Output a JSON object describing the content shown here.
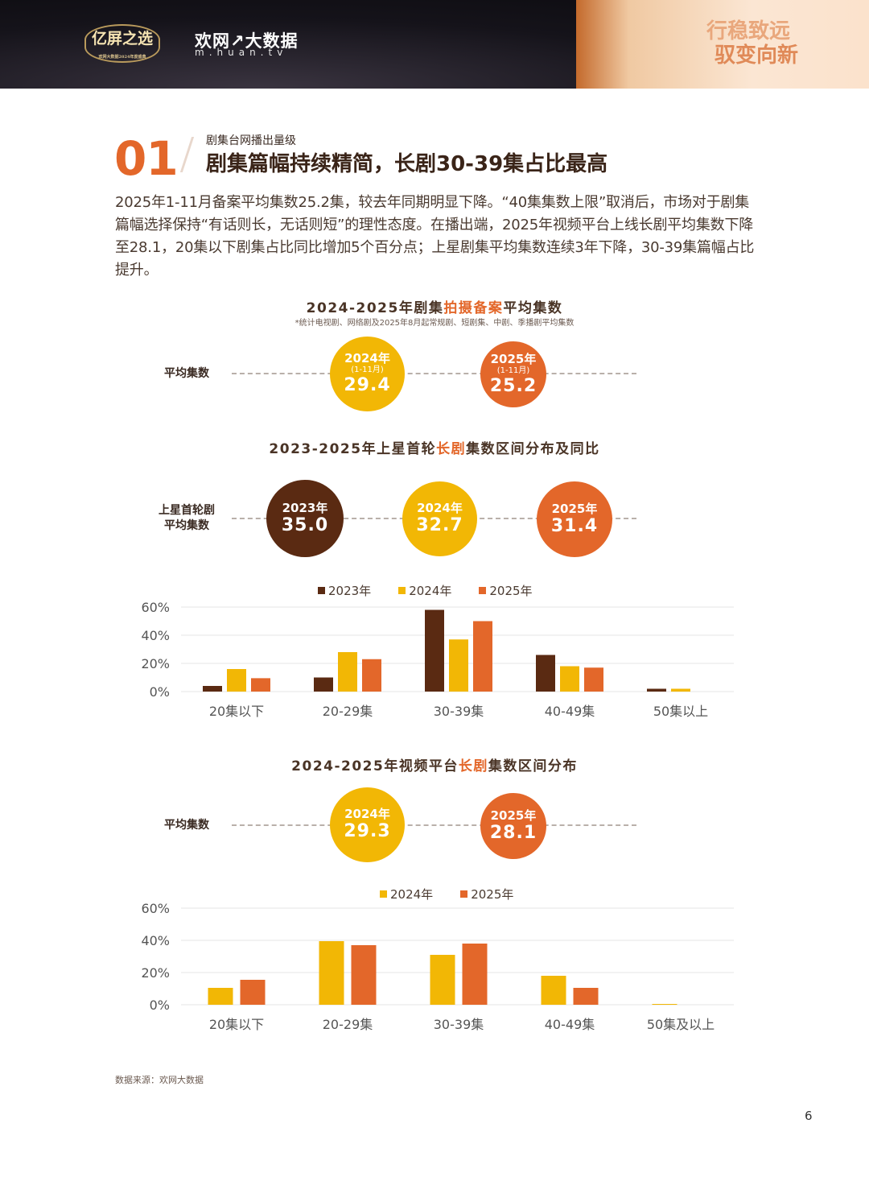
{
  "header": {
    "logo_text": "亿屏之选",
    "logo_subtext": "欢网大数据2024年度盛典",
    "brand": "欢网↗大数据",
    "brand_url": "m.huan.tv",
    "slogan_line1": "行稳致远",
    "slogan_line2": "驭变向新"
  },
  "section": {
    "number": "01",
    "kicker": "剧集台网播出量级",
    "title": "剧集篇幅持续精简，长剧30-39集占比最高",
    "paragraph": "2025年1-11月备案平均集数25.2集，较去年同期明显下降。“40集集数上限”取消后，市场对于剧集篇幅选择保持“有话则长，无话则短”的理性态度。在播出端，2025年视频平台上线长剧平均集数下降至28.1，20集以下剧集占比同比增加5个百分点；上星剧集平均集数连续3年下降，30-39集篇幅占比提升。"
  },
  "chart1": {
    "title_a": "2024-2025年剧集",
    "title_hl": "拍摄备案",
    "title_b": "平均集数",
    "note": "*统计电视剧、网络剧及2025年8月起常规剧、短剧集、中剧、季播剧平均集数",
    "row_label": "平均集数",
    "items": [
      {
        "year": "2024年",
        "sub": "(1-11月)",
        "value": "29.4"
      },
      {
        "year": "2025年",
        "sub": "(1-11月)",
        "value": "25.2"
      }
    ]
  },
  "chart2": {
    "title_a": "2023-2025年上星首轮",
    "title_hl": "长剧",
    "title_b": "集数区间分布及同比",
    "row_label_line1": "上星首轮剧",
    "row_label_line2": "平均集数",
    "items": [
      {
        "year": "2023年",
        "value": "35.0"
      },
      {
        "year": "2024年",
        "value": "32.7"
      },
      {
        "year": "2025年",
        "value": "31.4"
      }
    ]
  },
  "chart3": {
    "title_a": "2024-2025年视频平台",
    "title_hl": "长剧",
    "title_b": "集数区间分布",
    "row_label": "平均集数",
    "items": [
      {
        "year": "2024年",
        "value": "29.3"
      },
      {
        "year": "2025年",
        "value": "28.1"
      }
    ]
  },
  "colors": {
    "y2023": "#5a2a12",
    "y2024": "#f2b705",
    "y2025": "#e3672a",
    "accent": "#e3672a"
  },
  "chart_data": [
    {
      "type": "bar",
      "categories": [
        "20集以下",
        "20-29集",
        "30-39集",
        "40-49集",
        "50集以上"
      ],
      "series": [
        {
          "name": "2023年",
          "values": [
            4,
            10,
            58,
            26,
            2
          ]
        },
        {
          "name": "2024年",
          "values": [
            16,
            28,
            37,
            18,
            2
          ]
        },
        {
          "name": "2025年",
          "values": [
            9.5,
            23,
            50,
            17,
            0
          ]
        }
      ],
      "yticks": [
        "60%",
        "40%",
        "20%",
        "0%"
      ],
      "ylim": [
        0,
        60
      ],
      "legend": "top-center",
      "grid": true
    },
    {
      "type": "bar",
      "categories": [
        "20集以下",
        "20-29集",
        "30-39集",
        "40-49集",
        "50集及以上"
      ],
      "series": [
        {
          "name": "2024年",
          "values": [
            10.5,
            39.5,
            31,
            18,
            0.5
          ]
        },
        {
          "name": "2025年",
          "values": [
            15.5,
            37,
            38,
            10.5,
            0
          ]
        }
      ],
      "yticks": [
        "60%",
        "40%",
        "20%",
        "0%"
      ],
      "ylim": [
        0,
        60
      ],
      "legend": "top-center",
      "grid": true
    }
  ],
  "footer": {
    "source": "数据来源：欢网大数据",
    "page": "6"
  }
}
